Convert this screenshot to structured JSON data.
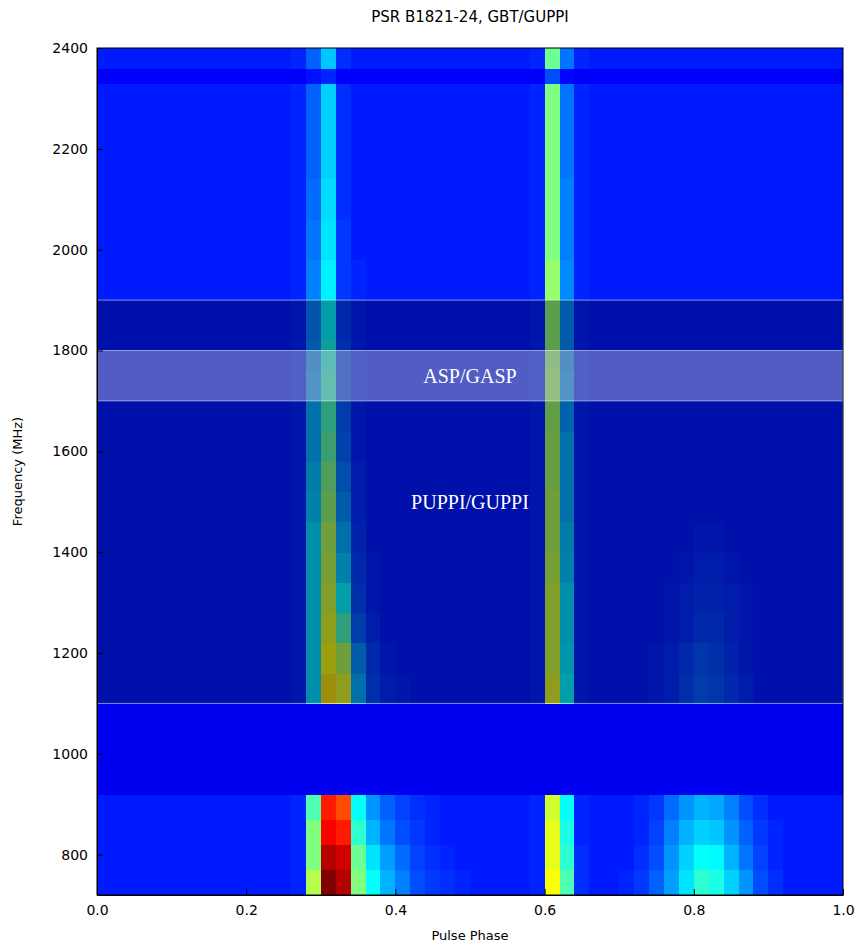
{
  "chart_data": {
    "type": "heatmap",
    "title": "PSR B1821-24, GBT/GUPPI",
    "x_label": "Pulse Phase",
    "y_label": "Frequency (MHz)",
    "xlim": [
      0,
      1
    ],
    "ylim": [
      720,
      2400
    ],
    "xticks": [
      {
        "value": 0,
        "label": "0.0"
      },
      0.2,
      0.4,
      0.6,
      0.8,
      {
        "value": 1,
        "label": "1.0"
      }
    ],
    "yticks": [
      800,
      1000,
      1200,
      1400,
      1600,
      1800,
      2000,
      2200,
      2400
    ],
    "grid": false,
    "zlim": [
      0,
      1
    ],
    "x_bins": [
      0,
      0.02,
      0.04,
      0.06,
      0.08,
      0.1,
      0.12,
      0.14,
      0.16,
      0.18,
      0.2,
      0.22,
      0.24,
      0.26,
      0.28,
      0.3,
      0.32,
      0.34,
      0.36,
      0.38,
      0.4,
      0.42,
      0.44,
      0.46,
      0.48,
      0.5,
      0.52,
      0.54,
      0.56,
      0.58,
      0.6,
      0.62,
      0.64,
      0.66,
      0.68,
      0.7,
      0.72,
      0.74,
      0.76,
      0.78,
      0.8,
      0.82,
      0.84,
      0.86,
      0.88,
      0.9,
      0.92,
      0.94,
      0.96,
      0.98,
      1
    ],
    "y_bins": [
      720,
      770,
      820,
      870,
      920,
      1100,
      1160,
      1220,
      1280,
      1340,
      1400,
      1460,
      1520,
      1580,
      1640,
      1700,
      1760,
      1820,
      1900,
      1980,
      2060,
      2140,
      2200,
      2330,
      2360,
      2400
    ],
    "z": [
      [
        0.15,
        0.15,
        0.15,
        0.15,
        0.15,
        0.15,
        0.15,
        0.15,
        0.15,
        0.15,
        0.15,
        0.15,
        0.15,
        0.16,
        0.55,
        1.0,
        0.95,
        0.5,
        0.38,
        0.3,
        0.25,
        0.2,
        0.18,
        0.17,
        0.16,
        0.15,
        0.15,
        0.15,
        0.15,
        0.16,
        0.62,
        0.45,
        0.17,
        0.15,
        0.15,
        0.16,
        0.18,
        0.22,
        0.28,
        0.35,
        0.42,
        0.4,
        0.33,
        0.27,
        0.2,
        0.17,
        0.15,
        0.15,
        0.15,
        0.15
      ],
      [
        0.15,
        0.15,
        0.15,
        0.15,
        0.15,
        0.15,
        0.15,
        0.15,
        0.15,
        0.15,
        0.15,
        0.15,
        0.15,
        0.16,
        0.5,
        0.95,
        0.92,
        0.48,
        0.35,
        0.28,
        0.23,
        0.19,
        0.17,
        0.16,
        0.15,
        0.15,
        0.15,
        0.15,
        0.15,
        0.16,
        0.6,
        0.42,
        0.17,
        0.15,
        0.15,
        0.15,
        0.17,
        0.2,
        0.27,
        0.33,
        0.38,
        0.37,
        0.3,
        0.24,
        0.19,
        0.16,
        0.15,
        0.15,
        0.15,
        0.15
      ],
      [
        0.15,
        0.15,
        0.15,
        0.15,
        0.15,
        0.15,
        0.15,
        0.15,
        0.15,
        0.15,
        0.15,
        0.15,
        0.15,
        0.16,
        0.5,
        0.88,
        0.85,
        0.42,
        0.3,
        0.24,
        0.2,
        0.18,
        0.16,
        0.15,
        0.15,
        0.15,
        0.15,
        0.15,
        0.15,
        0.16,
        0.6,
        0.4,
        0.16,
        0.15,
        0.15,
        0.15,
        0.16,
        0.19,
        0.25,
        0.3,
        0.33,
        0.32,
        0.27,
        0.22,
        0.18,
        0.16,
        0.15,
        0.15,
        0.15,
        0.15
      ],
      [
        0.15,
        0.15,
        0.15,
        0.15,
        0.15,
        0.15,
        0.15,
        0.15,
        0.15,
        0.15,
        0.15,
        0.15,
        0.15,
        0.16,
        0.45,
        0.85,
        0.8,
        0.38,
        0.27,
        0.22,
        0.19,
        0.17,
        0.16,
        0.15,
        0.15,
        0.15,
        0.15,
        0.15,
        0.15,
        0.16,
        0.58,
        0.38,
        0.16,
        0.15,
        0.15,
        0.15,
        0.16,
        0.18,
        0.23,
        0.27,
        0.3,
        0.29,
        0.25,
        0.2,
        0.17,
        0.15,
        0.15,
        0.15,
        0.15,
        0.15
      ],
      [
        0.11,
        0.11,
        0.11,
        0.11,
        0.11,
        0.11,
        0.11,
        0.11,
        0.11,
        0.11,
        0.11,
        0.11,
        0.11,
        0.11,
        0.11,
        0.11,
        0.11,
        0.11,
        0.11,
        0.11,
        0.11,
        0.11,
        0.11,
        0.11,
        0.11,
        0.11,
        0.11,
        0.11,
        0.11,
        0.11,
        0.11,
        0.11,
        0.11,
        0.11,
        0.11,
        0.11,
        0.11,
        0.11,
        0.11,
        0.11,
        0.11,
        0.11,
        0.11,
        0.11,
        0.11,
        0.11,
        0.11,
        0.11,
        0.11,
        0.11
      ],
      [
        0.15,
        0.15,
        0.15,
        0.15,
        0.15,
        0.15,
        0.15,
        0.15,
        0.15,
        0.15,
        0.15,
        0.15,
        0.15,
        0.16,
        0.35,
        0.65,
        0.6,
        0.3,
        0.2,
        0.17,
        0.16,
        0.15,
        0.15,
        0.15,
        0.15,
        0.15,
        0.15,
        0.15,
        0.15,
        0.16,
        0.6,
        0.38,
        0.16,
        0.15,
        0.15,
        0.15,
        0.15,
        0.16,
        0.17,
        0.2,
        0.22,
        0.21,
        0.19,
        0.17,
        0.15,
        0.15,
        0.15,
        0.15,
        0.15,
        0.15
      ],
      [
        0.15,
        0.15,
        0.15,
        0.15,
        0.15,
        0.15,
        0.15,
        0.15,
        0.15,
        0.15,
        0.15,
        0.15,
        0.15,
        0.16,
        0.35,
        0.62,
        0.55,
        0.27,
        0.19,
        0.16,
        0.15,
        0.15,
        0.15,
        0.15,
        0.15,
        0.15,
        0.15,
        0.15,
        0.15,
        0.16,
        0.58,
        0.36,
        0.16,
        0.15,
        0.15,
        0.15,
        0.15,
        0.16,
        0.17,
        0.19,
        0.21,
        0.2,
        0.18,
        0.16,
        0.15,
        0.15,
        0.15,
        0.15,
        0.15,
        0.15
      ],
      [
        0.15,
        0.15,
        0.15,
        0.15,
        0.15,
        0.15,
        0.15,
        0.15,
        0.15,
        0.15,
        0.15,
        0.15,
        0.15,
        0.16,
        0.35,
        0.6,
        0.45,
        0.22,
        0.17,
        0.15,
        0.15,
        0.15,
        0.15,
        0.15,
        0.15,
        0.15,
        0.15,
        0.15,
        0.15,
        0.16,
        0.58,
        0.35,
        0.16,
        0.15,
        0.15,
        0.15,
        0.15,
        0.15,
        0.16,
        0.17,
        0.19,
        0.19,
        0.17,
        0.16,
        0.15,
        0.15,
        0.15,
        0.15,
        0.15,
        0.15
      ],
      [
        0.15,
        0.15,
        0.15,
        0.15,
        0.15,
        0.15,
        0.15,
        0.15,
        0.15,
        0.15,
        0.15,
        0.15,
        0.15,
        0.16,
        0.35,
        0.58,
        0.38,
        0.2,
        0.16,
        0.15,
        0.15,
        0.15,
        0.15,
        0.15,
        0.15,
        0.15,
        0.15,
        0.15,
        0.15,
        0.16,
        0.58,
        0.35,
        0.16,
        0.15,
        0.15,
        0.15,
        0.15,
        0.15,
        0.16,
        0.17,
        0.18,
        0.18,
        0.17,
        0.16,
        0.15,
        0.15,
        0.15,
        0.15,
        0.15,
        0.15
      ],
      [
        0.15,
        0.15,
        0.15,
        0.15,
        0.15,
        0.15,
        0.15,
        0.15,
        0.15,
        0.15,
        0.15,
        0.15,
        0.15,
        0.16,
        0.35,
        0.56,
        0.33,
        0.19,
        0.16,
        0.15,
        0.15,
        0.15,
        0.15,
        0.15,
        0.15,
        0.15,
        0.15,
        0.15,
        0.15,
        0.16,
        0.56,
        0.33,
        0.16,
        0.15,
        0.15,
        0.15,
        0.15,
        0.15,
        0.15,
        0.16,
        0.17,
        0.17,
        0.16,
        0.15,
        0.15,
        0.15,
        0.15,
        0.15,
        0.15,
        0.15
      ],
      [
        0.15,
        0.15,
        0.15,
        0.15,
        0.15,
        0.15,
        0.15,
        0.15,
        0.15,
        0.15,
        0.15,
        0.15,
        0.15,
        0.16,
        0.35,
        0.55,
        0.3,
        0.18,
        0.15,
        0.15,
        0.15,
        0.15,
        0.15,
        0.15,
        0.15,
        0.15,
        0.15,
        0.15,
        0.15,
        0.16,
        0.55,
        0.32,
        0.16,
        0.15,
        0.15,
        0.15,
        0.15,
        0.15,
        0.15,
        0.15,
        0.16,
        0.16,
        0.15,
        0.15,
        0.15,
        0.15,
        0.15,
        0.15,
        0.15,
        0.15
      ],
      [
        0.15,
        0.15,
        0.15,
        0.15,
        0.15,
        0.15,
        0.15,
        0.15,
        0.15,
        0.15,
        0.15,
        0.15,
        0.15,
        0.16,
        0.33,
        0.52,
        0.27,
        0.17,
        0.15,
        0.15,
        0.15,
        0.15,
        0.15,
        0.15,
        0.15,
        0.15,
        0.15,
        0.15,
        0.15,
        0.16,
        0.55,
        0.3,
        0.16,
        0.15,
        0.15,
        0.15,
        0.15,
        0.15,
        0.15,
        0.15,
        0.15,
        0.15,
        0.15,
        0.15,
        0.15,
        0.15,
        0.15,
        0.15,
        0.15,
        0.15
      ],
      [
        0.15,
        0.15,
        0.15,
        0.15,
        0.15,
        0.15,
        0.15,
        0.15,
        0.15,
        0.15,
        0.15,
        0.15,
        0.15,
        0.16,
        0.32,
        0.5,
        0.25,
        0.17,
        0.15,
        0.15,
        0.15,
        0.15,
        0.15,
        0.15,
        0.15,
        0.15,
        0.15,
        0.15,
        0.15,
        0.16,
        0.54,
        0.3,
        0.16,
        0.15,
        0.15,
        0.15,
        0.15,
        0.15,
        0.15,
        0.15,
        0.15,
        0.15,
        0.15,
        0.15,
        0.15,
        0.15,
        0.15,
        0.15,
        0.15,
        0.15
      ],
      [
        0.15,
        0.15,
        0.15,
        0.15,
        0.15,
        0.15,
        0.15,
        0.15,
        0.15,
        0.15,
        0.15,
        0.15,
        0.15,
        0.16,
        0.3,
        0.47,
        0.23,
        0.16,
        0.15,
        0.15,
        0.15,
        0.15,
        0.15,
        0.15,
        0.15,
        0.15,
        0.15,
        0.15,
        0.15,
        0.16,
        0.54,
        0.3,
        0.16,
        0.15,
        0.15,
        0.15,
        0.15,
        0.15,
        0.15,
        0.15,
        0.15,
        0.15,
        0.15,
        0.15,
        0.15,
        0.15,
        0.15,
        0.15,
        0.15,
        0.15
      ],
      [
        0.15,
        0.15,
        0.15,
        0.15,
        0.15,
        0.15,
        0.15,
        0.15,
        0.15,
        0.15,
        0.15,
        0.15,
        0.15,
        0.16,
        0.3,
        0.45,
        0.22,
        0.16,
        0.15,
        0.15,
        0.15,
        0.15,
        0.15,
        0.15,
        0.15,
        0.15,
        0.15,
        0.15,
        0.15,
        0.16,
        0.53,
        0.28,
        0.16,
        0.15,
        0.15,
        0.15,
        0.15,
        0.15,
        0.15,
        0.15,
        0.15,
        0.15,
        0.15,
        0.15,
        0.15,
        0.15,
        0.15,
        0.15,
        0.15,
        0.15
      ],
      [
        0.15,
        0.15,
        0.15,
        0.15,
        0.15,
        0.15,
        0.15,
        0.15,
        0.15,
        0.15,
        0.15,
        0.15,
        0.15,
        0.16,
        0.28,
        0.42,
        0.2,
        0.16,
        0.15,
        0.15,
        0.15,
        0.15,
        0.15,
        0.15,
        0.15,
        0.15,
        0.15,
        0.15,
        0.15,
        0.16,
        0.53,
        0.28,
        0.16,
        0.15,
        0.15,
        0.15,
        0.15,
        0.15,
        0.15,
        0.15,
        0.15,
        0.15,
        0.15,
        0.15,
        0.15,
        0.15,
        0.15,
        0.15,
        0.15,
        0.15
      ],
      [
        0.15,
        0.15,
        0.15,
        0.15,
        0.15,
        0.15,
        0.15,
        0.15,
        0.15,
        0.15,
        0.15,
        0.15,
        0.15,
        0.16,
        0.27,
        0.4,
        0.2,
        0.16,
        0.15,
        0.15,
        0.15,
        0.15,
        0.15,
        0.15,
        0.15,
        0.15,
        0.15,
        0.15,
        0.15,
        0.16,
        0.52,
        0.27,
        0.16,
        0.15,
        0.15,
        0.15,
        0.15,
        0.15,
        0.15,
        0.15,
        0.15,
        0.15,
        0.15,
        0.15,
        0.15,
        0.15,
        0.15,
        0.15,
        0.15,
        0.15
      ],
      [
        0.15,
        0.15,
        0.15,
        0.15,
        0.15,
        0.15,
        0.15,
        0.15,
        0.15,
        0.15,
        0.15,
        0.15,
        0.15,
        0.16,
        0.26,
        0.38,
        0.19,
        0.16,
        0.15,
        0.15,
        0.15,
        0.15,
        0.15,
        0.15,
        0.15,
        0.15,
        0.15,
        0.15,
        0.15,
        0.16,
        0.52,
        0.27,
        0.16,
        0.15,
        0.15,
        0.15,
        0.15,
        0.15,
        0.15,
        0.15,
        0.15,
        0.15,
        0.15,
        0.15,
        0.15,
        0.15,
        0.15,
        0.15,
        0.15,
        0.15
      ],
      [
        0.15,
        0.15,
        0.15,
        0.15,
        0.15,
        0.15,
        0.15,
        0.15,
        0.15,
        0.15,
        0.15,
        0.15,
        0.15,
        0.16,
        0.25,
        0.36,
        0.18,
        0.16,
        0.15,
        0.15,
        0.15,
        0.15,
        0.15,
        0.15,
        0.15,
        0.15,
        0.15,
        0.15,
        0.15,
        0.16,
        0.52,
        0.26,
        0.16,
        0.15,
        0.15,
        0.15,
        0.15,
        0.15,
        0.15,
        0.15,
        0.15,
        0.15,
        0.15,
        0.15,
        0.15,
        0.15,
        0.15,
        0.15,
        0.15,
        0.15
      ],
      [
        0.15,
        0.15,
        0.15,
        0.15,
        0.15,
        0.15,
        0.15,
        0.15,
        0.15,
        0.15,
        0.15,
        0.15,
        0.15,
        0.16,
        0.24,
        0.35,
        0.18,
        0.15,
        0.15,
        0.15,
        0.15,
        0.15,
        0.15,
        0.15,
        0.15,
        0.15,
        0.15,
        0.15,
        0.15,
        0.16,
        0.5,
        0.25,
        0.16,
        0.15,
        0.15,
        0.15,
        0.15,
        0.15,
        0.15,
        0.15,
        0.15,
        0.15,
        0.15,
        0.15,
        0.15,
        0.15,
        0.15,
        0.15,
        0.15,
        0.15
      ],
      [
        0.15,
        0.15,
        0.15,
        0.15,
        0.15,
        0.15,
        0.15,
        0.15,
        0.15,
        0.15,
        0.15,
        0.15,
        0.15,
        0.16,
        0.23,
        0.34,
        0.17,
        0.15,
        0.15,
        0.15,
        0.15,
        0.15,
        0.15,
        0.15,
        0.15,
        0.15,
        0.15,
        0.15,
        0.15,
        0.16,
        0.5,
        0.25,
        0.16,
        0.15,
        0.15,
        0.15,
        0.15,
        0.15,
        0.15,
        0.15,
        0.15,
        0.15,
        0.15,
        0.15,
        0.15,
        0.15,
        0.15,
        0.15,
        0.15,
        0.15
      ],
      [
        0.15,
        0.15,
        0.15,
        0.15,
        0.15,
        0.15,
        0.15,
        0.15,
        0.15,
        0.15,
        0.15,
        0.15,
        0.15,
        0.16,
        0.22,
        0.33,
        0.17,
        0.15,
        0.15,
        0.15,
        0.15,
        0.15,
        0.15,
        0.15,
        0.15,
        0.15,
        0.15,
        0.15,
        0.15,
        0.16,
        0.5,
        0.24,
        0.16,
        0.15,
        0.15,
        0.15,
        0.15,
        0.15,
        0.15,
        0.15,
        0.15,
        0.15,
        0.15,
        0.15,
        0.15,
        0.15,
        0.15,
        0.15,
        0.15,
        0.15
      ],
      [
        0.15,
        0.15,
        0.15,
        0.15,
        0.15,
        0.15,
        0.15,
        0.15,
        0.15,
        0.15,
        0.15,
        0.15,
        0.15,
        0.16,
        0.22,
        0.33,
        0.17,
        0.15,
        0.15,
        0.15,
        0.15,
        0.15,
        0.15,
        0.15,
        0.15,
        0.15,
        0.15,
        0.15,
        0.15,
        0.16,
        0.5,
        0.24,
        0.16,
        0.15,
        0.15,
        0.15,
        0.15,
        0.15,
        0.15,
        0.15,
        0.15,
        0.15,
        0.15,
        0.15,
        0.15,
        0.15,
        0.15,
        0.15,
        0.15,
        0.15
      ],
      [
        0.12,
        0.12,
        0.12,
        0.12,
        0.12,
        0.12,
        0.12,
        0.12,
        0.12,
        0.12,
        0.12,
        0.12,
        0.12,
        0.12,
        0.14,
        0.16,
        0.12,
        0.12,
        0.12,
        0.12,
        0.12,
        0.12,
        0.12,
        0.12,
        0.12,
        0.12,
        0.12,
        0.12,
        0.12,
        0.12,
        0.2,
        0.13,
        0.12,
        0.12,
        0.12,
        0.12,
        0.12,
        0.12,
        0.12,
        0.12,
        0.12,
        0.12,
        0.12,
        0.12,
        0.12,
        0.12,
        0.12,
        0.12,
        0.12,
        0.12
      ],
      [
        0.15,
        0.15,
        0.15,
        0.15,
        0.15,
        0.15,
        0.15,
        0.15,
        0.15,
        0.15,
        0.15,
        0.15,
        0.15,
        0.16,
        0.22,
        0.32,
        0.17,
        0.15,
        0.15,
        0.15,
        0.15,
        0.15,
        0.15,
        0.15,
        0.15,
        0.15,
        0.15,
        0.15,
        0.15,
        0.16,
        0.48,
        0.24,
        0.16,
        0.15,
        0.15,
        0.15,
        0.15,
        0.15,
        0.15,
        0.15,
        0.15,
        0.15,
        0.15,
        0.15,
        0.15,
        0.15,
        0.15,
        0.15,
        0.15,
        0.15
      ]
    ],
    "annotations": [
      {
        "text": "PUPPI/GUPPI",
        "y_range": [
          1100,
          1900
        ]
      },
      {
        "text": "ASP/GASP",
        "y_range": [
          1700,
          1800
        ]
      }
    ]
  }
}
